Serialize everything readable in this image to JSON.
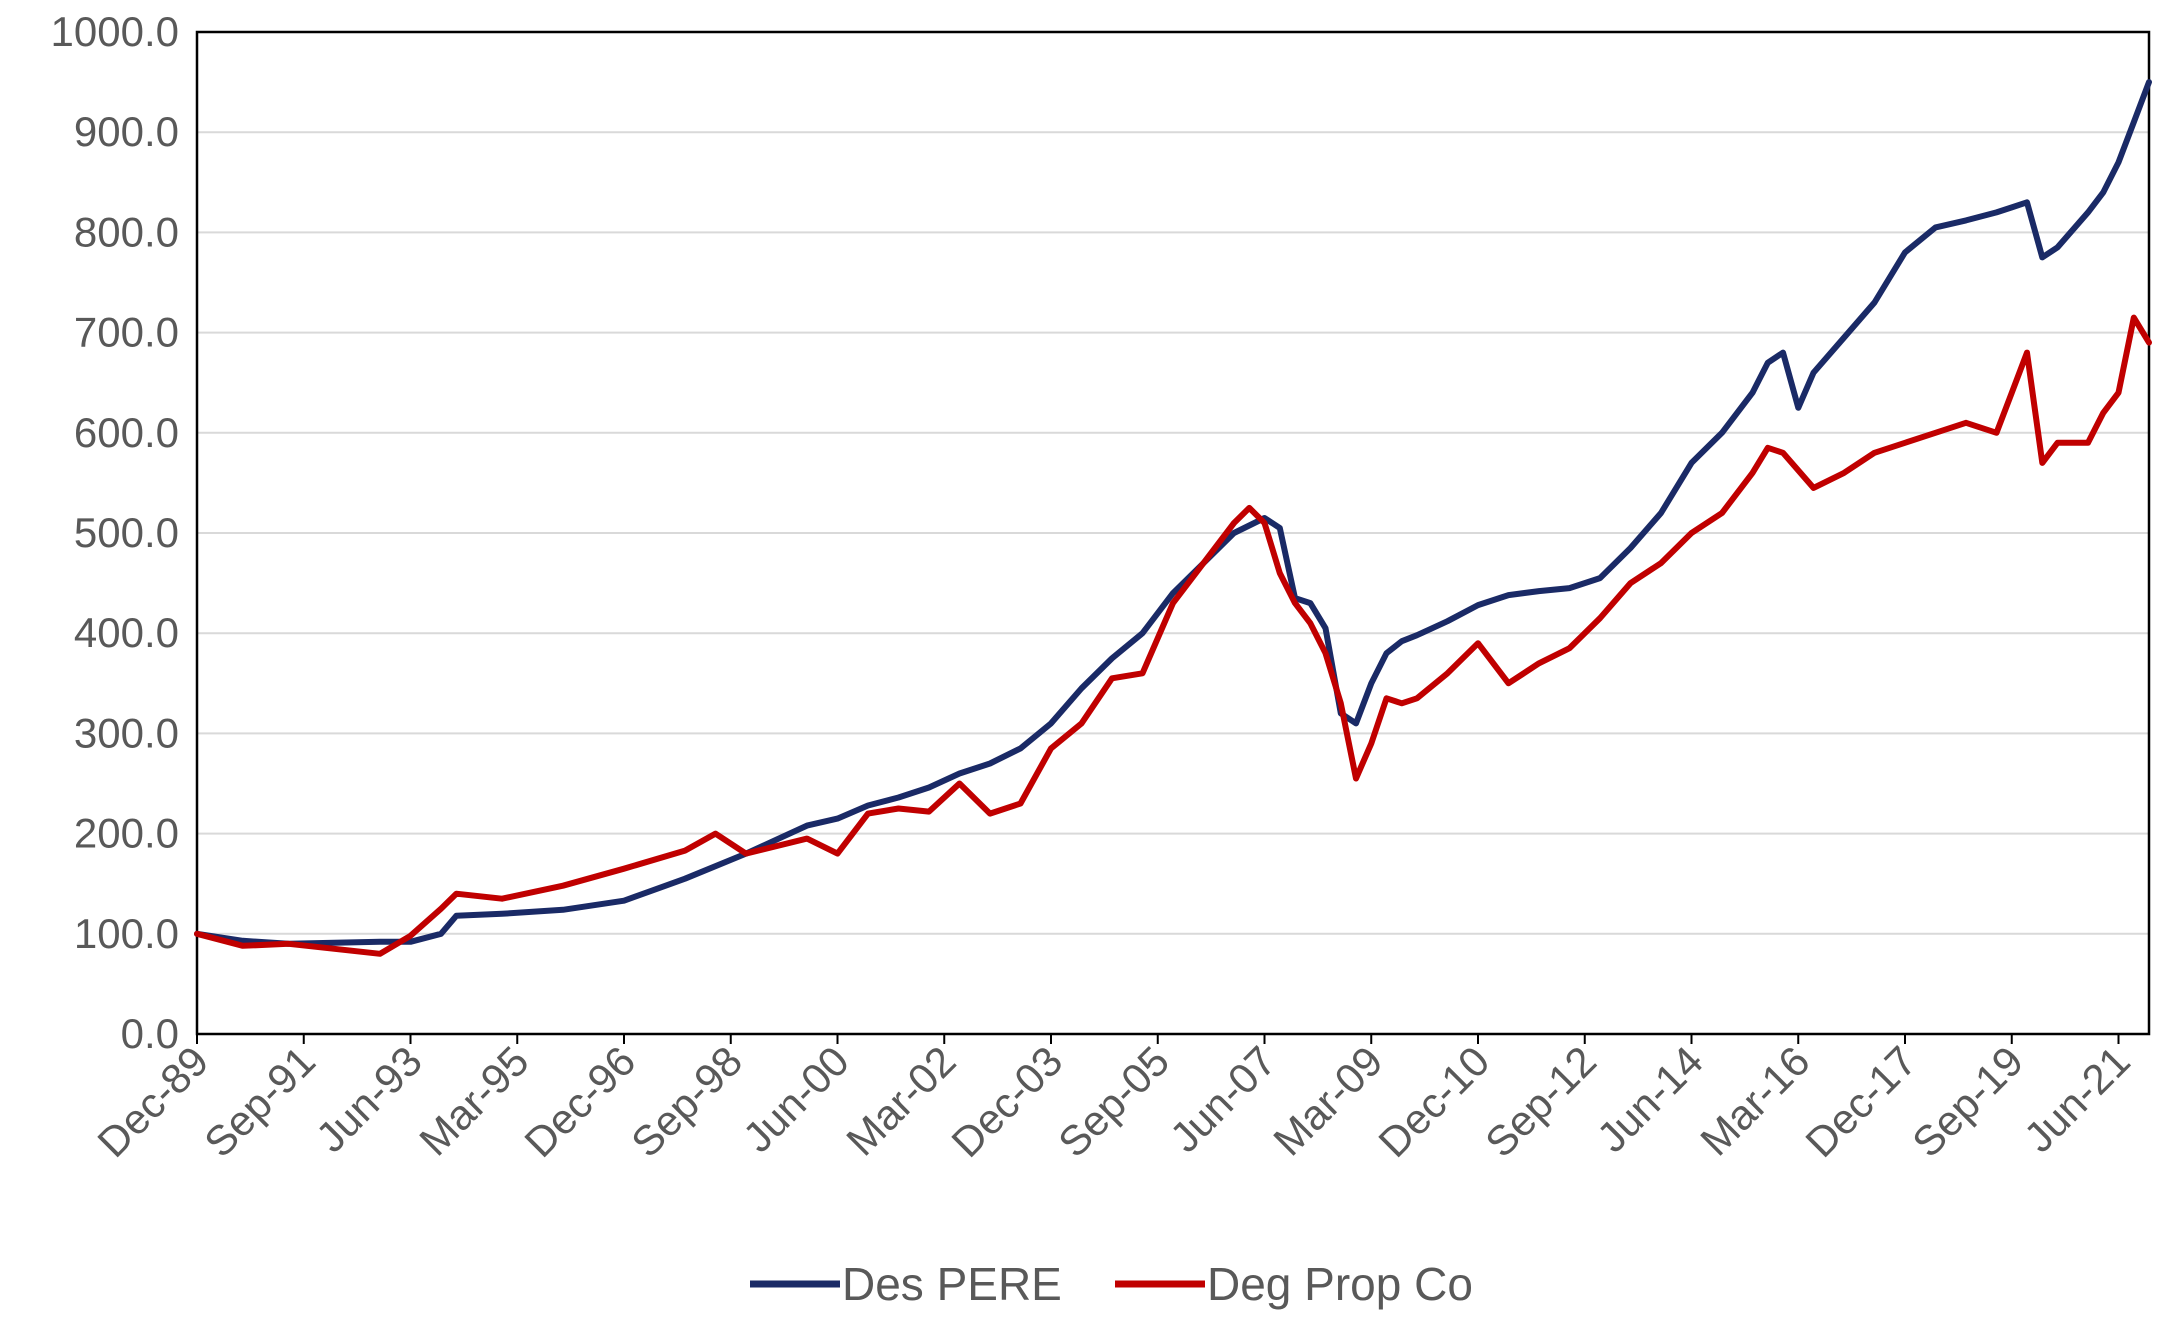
{
  "chart_data": {
    "type": "line",
    "title": "",
    "xlabel": "",
    "ylabel": "",
    "ylim": [
      0,
      1000
    ],
    "yticks": [
      "0.0",
      "100.0",
      "200.0",
      "300.0",
      "400.0",
      "500.0",
      "600.0",
      "700.0",
      "800.0",
      "900.0",
      "1000.0"
    ],
    "xlim": [
      "Dec-89",
      "Dec-21"
    ],
    "xticks": [
      "Dec-89",
      "Sep-91",
      "Jun-93",
      "Mar-95",
      "Dec-96",
      "Sep-98",
      "Jun-00",
      "Mar-02",
      "Dec-03",
      "Sep-05",
      "Jun-07",
      "Mar-09",
      "Dec-10",
      "Sep-12",
      "Jun-14",
      "Mar-16",
      "Dec-17",
      "Sep-19",
      "Jun-21"
    ],
    "grid": "horizontal",
    "legend_position": "bottom",
    "series": [
      {
        "name": "Des PERE",
        "color": "#1a2a66",
        "x": [
          "Dec-89",
          "Sep-90",
          "Jun-91",
          "Mar-92",
          "Dec-92",
          "Jun-93",
          "Dec-93",
          "Mar-94",
          "Dec-94",
          "Dec-95",
          "Dec-96",
          "Dec-97",
          "Dec-98",
          "Dec-99",
          "Jun-00",
          "Dec-00",
          "Jun-01",
          "Dec-01",
          "Jun-02",
          "Dec-02",
          "Jun-03",
          "Dec-03",
          "Jun-04",
          "Dec-04",
          "Jun-05",
          "Dec-05",
          "Jun-06",
          "Dec-06",
          "Jun-07",
          "Sep-07",
          "Dec-07",
          "Mar-08",
          "Jun-08",
          "Sep-08",
          "Dec-08",
          "Mar-09",
          "Jun-09",
          "Sep-09",
          "Dec-09",
          "Jun-10",
          "Dec-10",
          "Jun-11",
          "Dec-11",
          "Jun-12",
          "Dec-12",
          "Jun-13",
          "Dec-13",
          "Jun-14",
          "Dec-14",
          "Jun-15",
          "Sep-15",
          "Dec-15",
          "Mar-16",
          "Jun-16",
          "Dec-16",
          "Jun-17",
          "Dec-17",
          "Jun-18",
          "Dec-18",
          "Jun-19",
          "Sep-19",
          "Dec-19",
          "Mar-20",
          "Jun-20",
          "Dec-20",
          "Mar-21",
          "Jun-21",
          "Sep-21",
          "Dec-21"
        ],
        "values": [
          100,
          93,
          90,
          91,
          92,
          92,
          100,
          118,
          120,
          124,
          133,
          155,
          180,
          208,
          215,
          228,
          236,
          246,
          260,
          270,
          285,
          310,
          345,
          375,
          400,
          440,
          470,
          500,
          515,
          505,
          435,
          430,
          405,
          320,
          310,
          350,
          380,
          392,
          398,
          412,
          428,
          438,
          442,
          445,
          455,
          485,
          520,
          570,
          600,
          640,
          670,
          680,
          625,
          660,
          695,
          730,
          780,
          805,
          812,
          820,
          825,
          830,
          775,
          785,
          820,
          840,
          870,
          910,
          950
        ]
      },
      {
        "name": "Deg Prop Co",
        "color": "#c00000",
        "x": [
          "Dec-89",
          "Sep-90",
          "Jun-91",
          "Mar-92",
          "Dec-92",
          "Jun-93",
          "Dec-93",
          "Mar-94",
          "Dec-94",
          "Dec-95",
          "Dec-96",
          "Dec-97",
          "Jun-98",
          "Dec-98",
          "Dec-99",
          "Jun-00",
          "Dec-00",
          "Jun-01",
          "Dec-01",
          "Jun-02",
          "Dec-02",
          "Jun-03",
          "Dec-03",
          "Jun-04",
          "Dec-04",
          "Jun-05",
          "Dec-05",
          "Jun-06",
          "Dec-06",
          "Mar-07",
          "Jun-07",
          "Sep-07",
          "Dec-07",
          "Mar-08",
          "Jun-08",
          "Sep-08",
          "Dec-08",
          "Mar-09",
          "Jun-09",
          "Sep-09",
          "Dec-09",
          "Jun-10",
          "Dec-10",
          "Jun-11",
          "Dec-11",
          "Jun-12",
          "Dec-12",
          "Jun-13",
          "Dec-13",
          "Jun-14",
          "Dec-14",
          "Jun-15",
          "Sep-15",
          "Dec-15",
          "Jun-16",
          "Dec-16",
          "Jun-17",
          "Dec-17",
          "Jun-18",
          "Dec-18",
          "Jun-19",
          "Sep-19",
          "Dec-19",
          "Mar-20",
          "Jun-20",
          "Dec-20",
          "Mar-21",
          "Jun-21",
          "Sep-21",
          "Dec-21"
        ],
        "values": [
          100,
          88,
          90,
          85,
          80,
          98,
          125,
          140,
          135,
          148,
          165,
          183,
          200,
          180,
          195,
          180,
          220,
          225,
          222,
          250,
          220,
          230,
          285,
          310,
          355,
          360,
          430,
          470,
          510,
          525,
          510,
          460,
          430,
          410,
          380,
          330,
          255,
          290,
          335,
          330,
          335,
          360,
          390,
          350,
          370,
          385,
          415,
          450,
          470,
          500,
          520,
          560,
          585,
          580,
          545,
          560,
          580,
          590,
          600,
          610,
          600,
          640,
          680,
          570,
          590,
          590,
          620,
          640,
          715,
          690
        ]
      }
    ]
  }
}
